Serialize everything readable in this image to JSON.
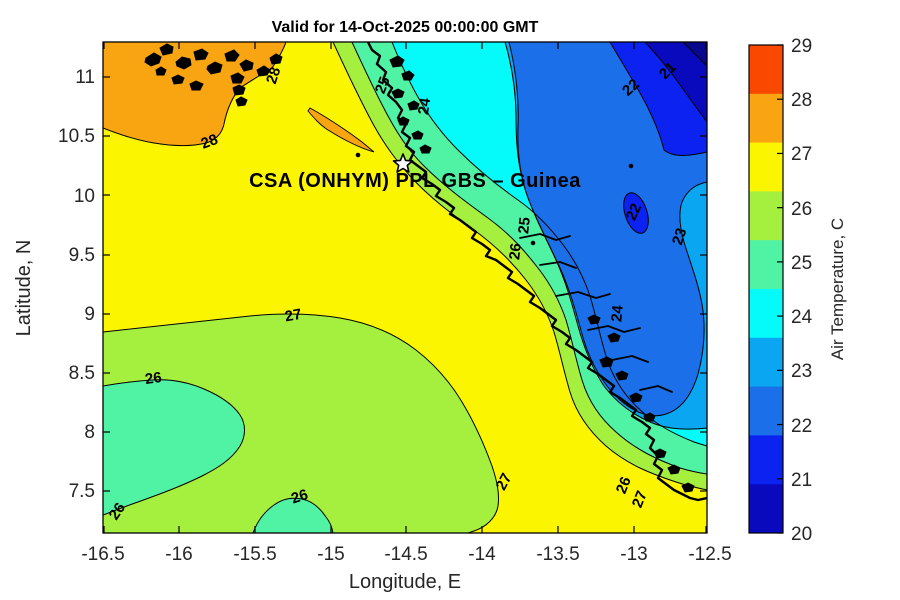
{
  "title": "Valid for 14-Oct-2025 00:00:00 GMT",
  "axes": {
    "xlabel": "Longitude, E",
    "ylabel": "Latitude, N",
    "xticks": [
      "-16.5",
      "-16",
      "-15.5",
      "-15",
      "-14.5",
      "-14",
      "-13.5",
      "-13",
      "-12.5"
    ],
    "yticks": [
      "11",
      "10.5",
      "10",
      "9.5",
      "9",
      "8.5",
      "8",
      "7.5"
    ]
  },
  "colorbar": {
    "label": "Air Temperature, C",
    "ticks": [
      "29",
      "28",
      "27",
      "26",
      "25",
      "24",
      "23",
      "22",
      "21",
      "20"
    ],
    "colors": [
      "#F94900",
      "#F9A511",
      "#FCF500",
      "#A5EF3F",
      "#50F3A3",
      "#05FBF9",
      "#0AA6F2",
      "#1B6FE9",
      "#0B22F0",
      "#0909BE"
    ]
  },
  "map": {
    "annotation": "CSA (ONHYM) PPL GBS – Guinea",
    "contour_labels": [
      {
        "text": "28"
      },
      {
        "text": "28"
      },
      {
        "text": "27"
      },
      {
        "text": "26"
      },
      {
        "text": "26"
      },
      {
        "text": "26"
      },
      {
        "text": "25"
      },
      {
        "text": "24"
      },
      {
        "text": "25"
      },
      {
        "text": "26"
      },
      {
        "text": "24"
      },
      {
        "text": "22"
      },
      {
        "text": "21"
      },
      {
        "text": "22"
      },
      {
        "text": "23"
      },
      {
        "text": "27"
      },
      {
        "text": "26"
      },
      {
        "text": "27"
      }
    ]
  },
  "chart_data": {
    "type": "heatmap",
    "subtype": "filled-contour-map",
    "title": "Valid for 14-Oct-2025 00:00:00 GMT",
    "xlabel": "Longitude, E",
    "ylabel": "Latitude, N",
    "xlim": [
      -16.5,
      -12.5
    ],
    "ylim": [
      7.15,
      11.3
    ],
    "xticks": [
      -16.5,
      -16,
      -15.5,
      -15,
      -14.5,
      -14,
      -13.5,
      -13,
      -12.5
    ],
    "yticks": [
      11,
      10.5,
      10,
      9.5,
      9,
      8.5,
      8,
      7.5
    ],
    "colorbar": {
      "label": "Air Temperature, C",
      "tick_values": [
        20,
        21,
        22,
        23,
        24,
        25,
        26,
        27,
        28,
        29
      ],
      "band_colors_top_to_bottom": [
        "#F94900",
        "#F9A511",
        "#FCF500",
        "#A5EF3F",
        "#50F3A3",
        "#05FBF9",
        "#0AA6F2",
        "#1B6FE9",
        "#0B22F0",
        "#0909BE"
      ]
    },
    "contour_levels_labeled": [
      21,
      22,
      23,
      24,
      25,
      26,
      27,
      28
    ],
    "contour_labels": [
      {
        "value": 28,
        "lon": -15.79,
        "lat": 10.42
      },
      {
        "value": 28,
        "lon": -15.35,
        "lat": 11.0
      },
      {
        "value": 27,
        "lon": -15.24,
        "lat": 8.95
      },
      {
        "value": 26,
        "lon": -16.16,
        "lat": 8.41
      },
      {
        "value": 26,
        "lon": -16.38,
        "lat": 7.31
      },
      {
        "value": 26,
        "lon": -15.19,
        "lat": 7.42
      },
      {
        "value": 25,
        "lon": -14.63,
        "lat": 10.92
      },
      {
        "value": 24,
        "lon": -14.35,
        "lat": 10.75
      },
      {
        "value": 25,
        "lon": -13.69,
        "lat": 9.74
      },
      {
        "value": 26,
        "lon": -13.75,
        "lat": 9.52
      },
      {
        "value": 24,
        "lon": -13.08,
        "lat": 9.0
      },
      {
        "value": 22,
        "lon": -13.0,
        "lat": 10.88
      },
      {
        "value": 21,
        "lon": -12.76,
        "lat": 11.03
      },
      {
        "value": 22,
        "lon": -12.97,
        "lat": 9.84
      },
      {
        "value": 23,
        "lon": -12.67,
        "lat": 9.64
      },
      {
        "value": 27,
        "lon": -13.83,
        "lat": 7.56
      },
      {
        "value": 26,
        "lon": -13.04,
        "lat": 7.53
      },
      {
        "value": 27,
        "lon": -12.93,
        "lat": 7.42
      }
    ],
    "annotation": {
      "text": "CSA (ONHYM) PPL GBS – Guinea",
      "lon": -14.9,
      "lat": 10.14
    },
    "star_marker": {
      "lon": -14.52,
      "lat": 10.26
    },
    "description": "Warm (27-28C, orange >28C) air over the Atlantic west of the Guinea coastline; temperature decreases north-eastward inland through green (25-27C), cyan (24-25C) and blue (20-23C) bands; coldest (20-21C) in the far north-east corner.",
    "grid": false,
    "legend_position": "right-colorbar"
  }
}
